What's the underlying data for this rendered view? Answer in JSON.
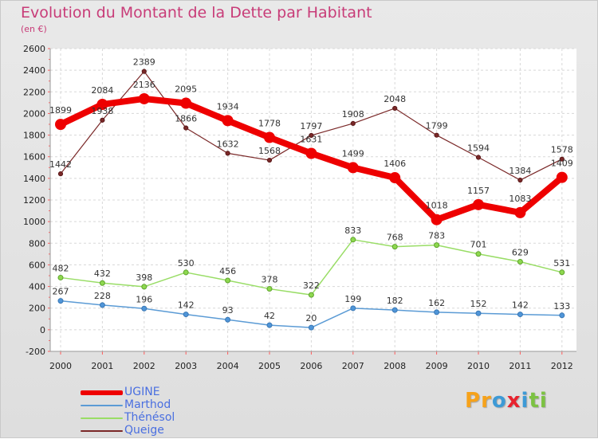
{
  "chart_data": {
    "type": "line",
    "title": "Evolution du Montant de la Dette par Habitant",
    "subtitle": "(en €)",
    "xlabel": "",
    "ylabel": "",
    "ylim": [
      -200,
      2600
    ],
    "yticks": [
      "-200",
      "0",
      "200",
      "400",
      "600",
      "800",
      "1000",
      "1200",
      "1400",
      "1600",
      "1800",
      "2000",
      "2200",
      "2400",
      "2600"
    ],
    "categories": [
      "2000",
      "2001",
      "2002",
      "2003",
      "2004",
      "2005",
      "2006",
      "2007",
      "2008",
      "2009",
      "2010",
      "2011",
      "2012"
    ],
    "grid": true,
    "legend_position": "bottom-left",
    "series": [
      {
        "name": "Queige",
        "color": "#7a2828",
        "values": [
          1442,
          1938,
          2389,
          1866,
          1632,
          1568,
          1797,
          1908,
          2048,
          1799,
          1594,
          1384,
          1578
        ]
      },
      {
        "name": "Thénésol",
        "color": "#99dd66",
        "values": [
          482,
          432,
          398,
          530,
          456,
          378,
          322,
          833,
          768,
          783,
          701,
          629,
          531
        ]
      },
      {
        "name": "Marthod",
        "color": "#5b9bd5",
        "values": [
          267,
          228,
          196,
          142,
          93,
          42,
          20,
          199,
          182,
          162,
          152,
          142,
          133
        ]
      },
      {
        "name": "UGINE",
        "color": "#ee0000",
        "values": [
          1899,
          2084,
          2136,
          2095,
          1934,
          1778,
          1631,
          1499,
          1406,
          1018,
          1157,
          1083,
          1409
        ]
      }
    ]
  },
  "legend": [
    {
      "name": "UGINE",
      "color": "#ee0000",
      "text_color": "#4a6fe0"
    },
    {
      "name": "Marthod",
      "color": "#5b9bd5",
      "text_color": "#4a6fe0"
    },
    {
      "name": "Thénésol",
      "color": "#99dd66",
      "text_color": "#4a6fe0"
    },
    {
      "name": "Queige",
      "color": "#7a2828",
      "text_color": "#4a6fe0"
    }
  ],
  "brand": {
    "letters": [
      "P",
      "r",
      "o",
      "x",
      "i",
      "t",
      "i"
    ],
    "colors": [
      "#f6a21b",
      "#f6a21b",
      "#3d9ad6",
      "#e8222e",
      "#3d9ad6",
      "#7cc242",
      "#7cc242"
    ]
  }
}
